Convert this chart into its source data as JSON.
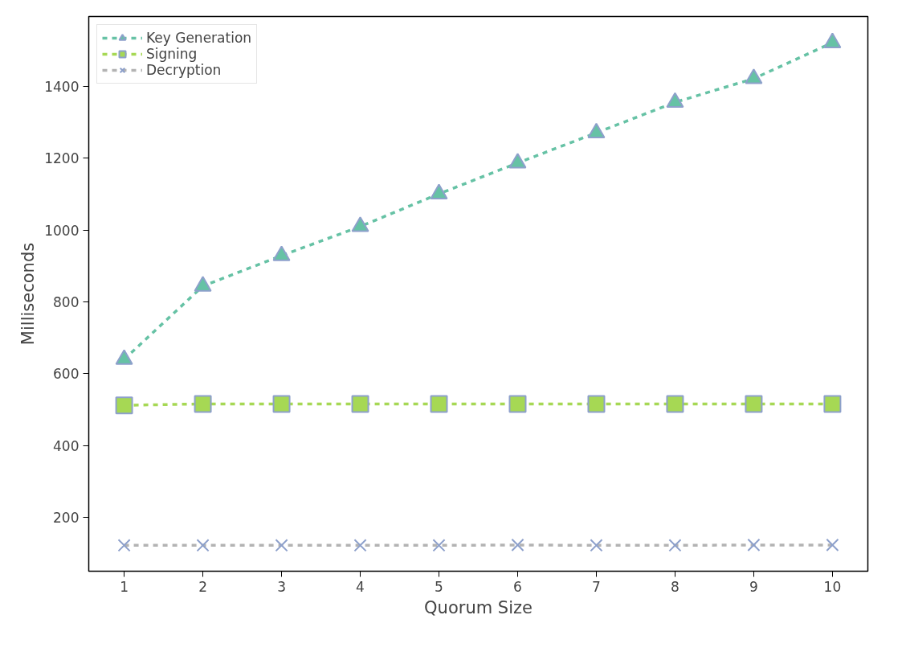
{
  "chart_data": {
    "type": "line",
    "xlabel": "Quorum Size",
    "ylabel": "Milliseconds",
    "x": [
      1,
      2,
      3,
      4,
      5,
      6,
      7,
      8,
      9,
      10
    ],
    "xlim": [
      0.55,
      10.45
    ],
    "xticks": [
      1,
      2,
      3,
      4,
      5,
      6,
      7,
      8,
      9,
      10
    ],
    "ylim": [
      50,
      1595
    ],
    "yticks": [
      200,
      400,
      600,
      800,
      1000,
      1200,
      1400
    ],
    "line_style": "dashed",
    "legend": "top left",
    "grid": false,
    "series": [
      {
        "name": "Key Generation",
        "color": "#66c2a5",
        "marker": "triangle",
        "values": [
          640,
          844,
          929,
          1010,
          1101,
          1187,
          1271,
          1356,
          1422,
          1522
        ]
      },
      {
        "name": "Signing",
        "color": "#a6d854",
        "marker": "square",
        "values": [
          512,
          516,
          516,
          516,
          516,
          516,
          516,
          516,
          516,
          516
        ]
      },
      {
        "name": "Decryption",
        "color": "#b3b3b3",
        "marker": "cross",
        "values": [
          122,
          122,
          122,
          122,
          122,
          123,
          122,
          122,
          123,
          123
        ]
      }
    ]
  }
}
